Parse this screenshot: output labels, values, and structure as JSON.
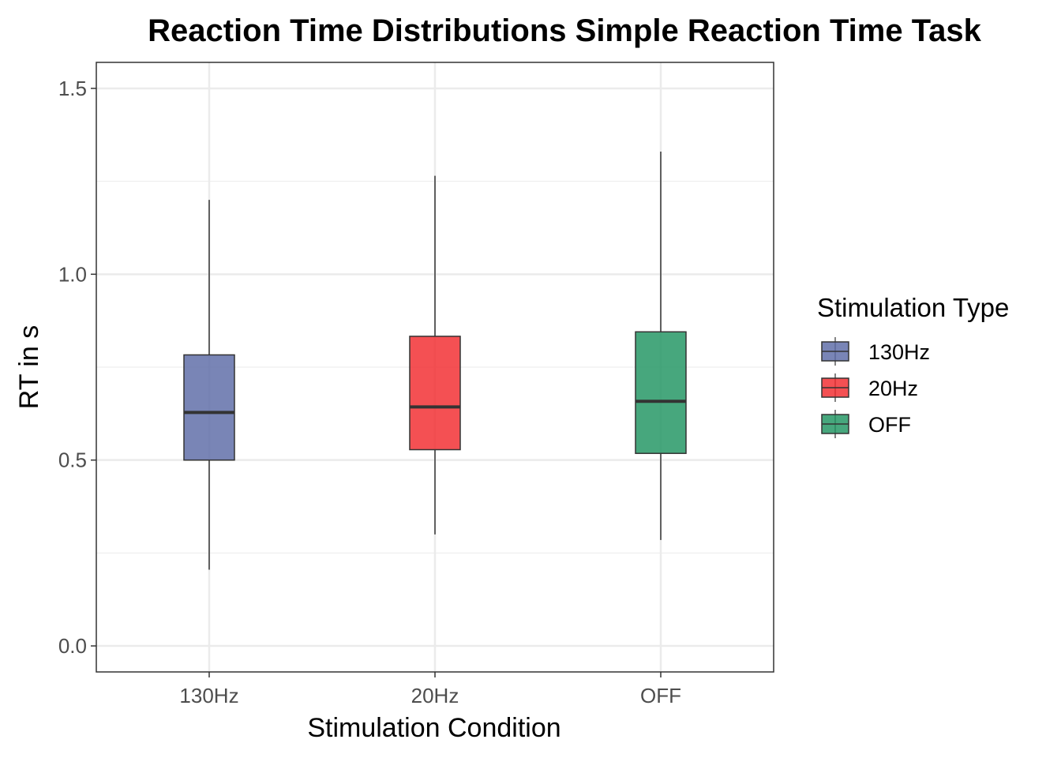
{
  "chart_data": {
    "type": "boxplot",
    "title": "Reaction Time Distributions Simple Reaction Time Task",
    "xlabel": "Stimulation Condition",
    "ylabel": "RT in s",
    "ylim": [
      -0.07,
      1.57
    ],
    "y_ticks": [
      0.0,
      0.5,
      1.0,
      1.5
    ],
    "y_tick_labels": [
      "0.0",
      "0.5",
      "1.0",
      "1.5"
    ],
    "grid": true,
    "legend": {
      "title": "Stimulation Type",
      "position": "right",
      "entries": [
        "130Hz",
        "20Hz",
        "OFF"
      ]
    },
    "categories": [
      "130Hz",
      "20Hz",
      "OFF"
    ],
    "boxes": [
      {
        "category": "130Hz",
        "color": "#5B6AA6",
        "min": 0.205,
        "q1": 0.5,
        "median": 0.628,
        "q3": 0.783,
        "max": 1.2
      },
      {
        "category": "20Hz",
        "color": "#F12A2D",
        "min": 0.3,
        "q1": 0.528,
        "median": 0.643,
        "q3": 0.833,
        "max": 1.265
      },
      {
        "category": "OFF",
        "color": "#1E9460",
        "min": 0.285,
        "q1": 0.518,
        "median": 0.658,
        "q3": 0.845,
        "max": 1.33
      }
    ]
  }
}
